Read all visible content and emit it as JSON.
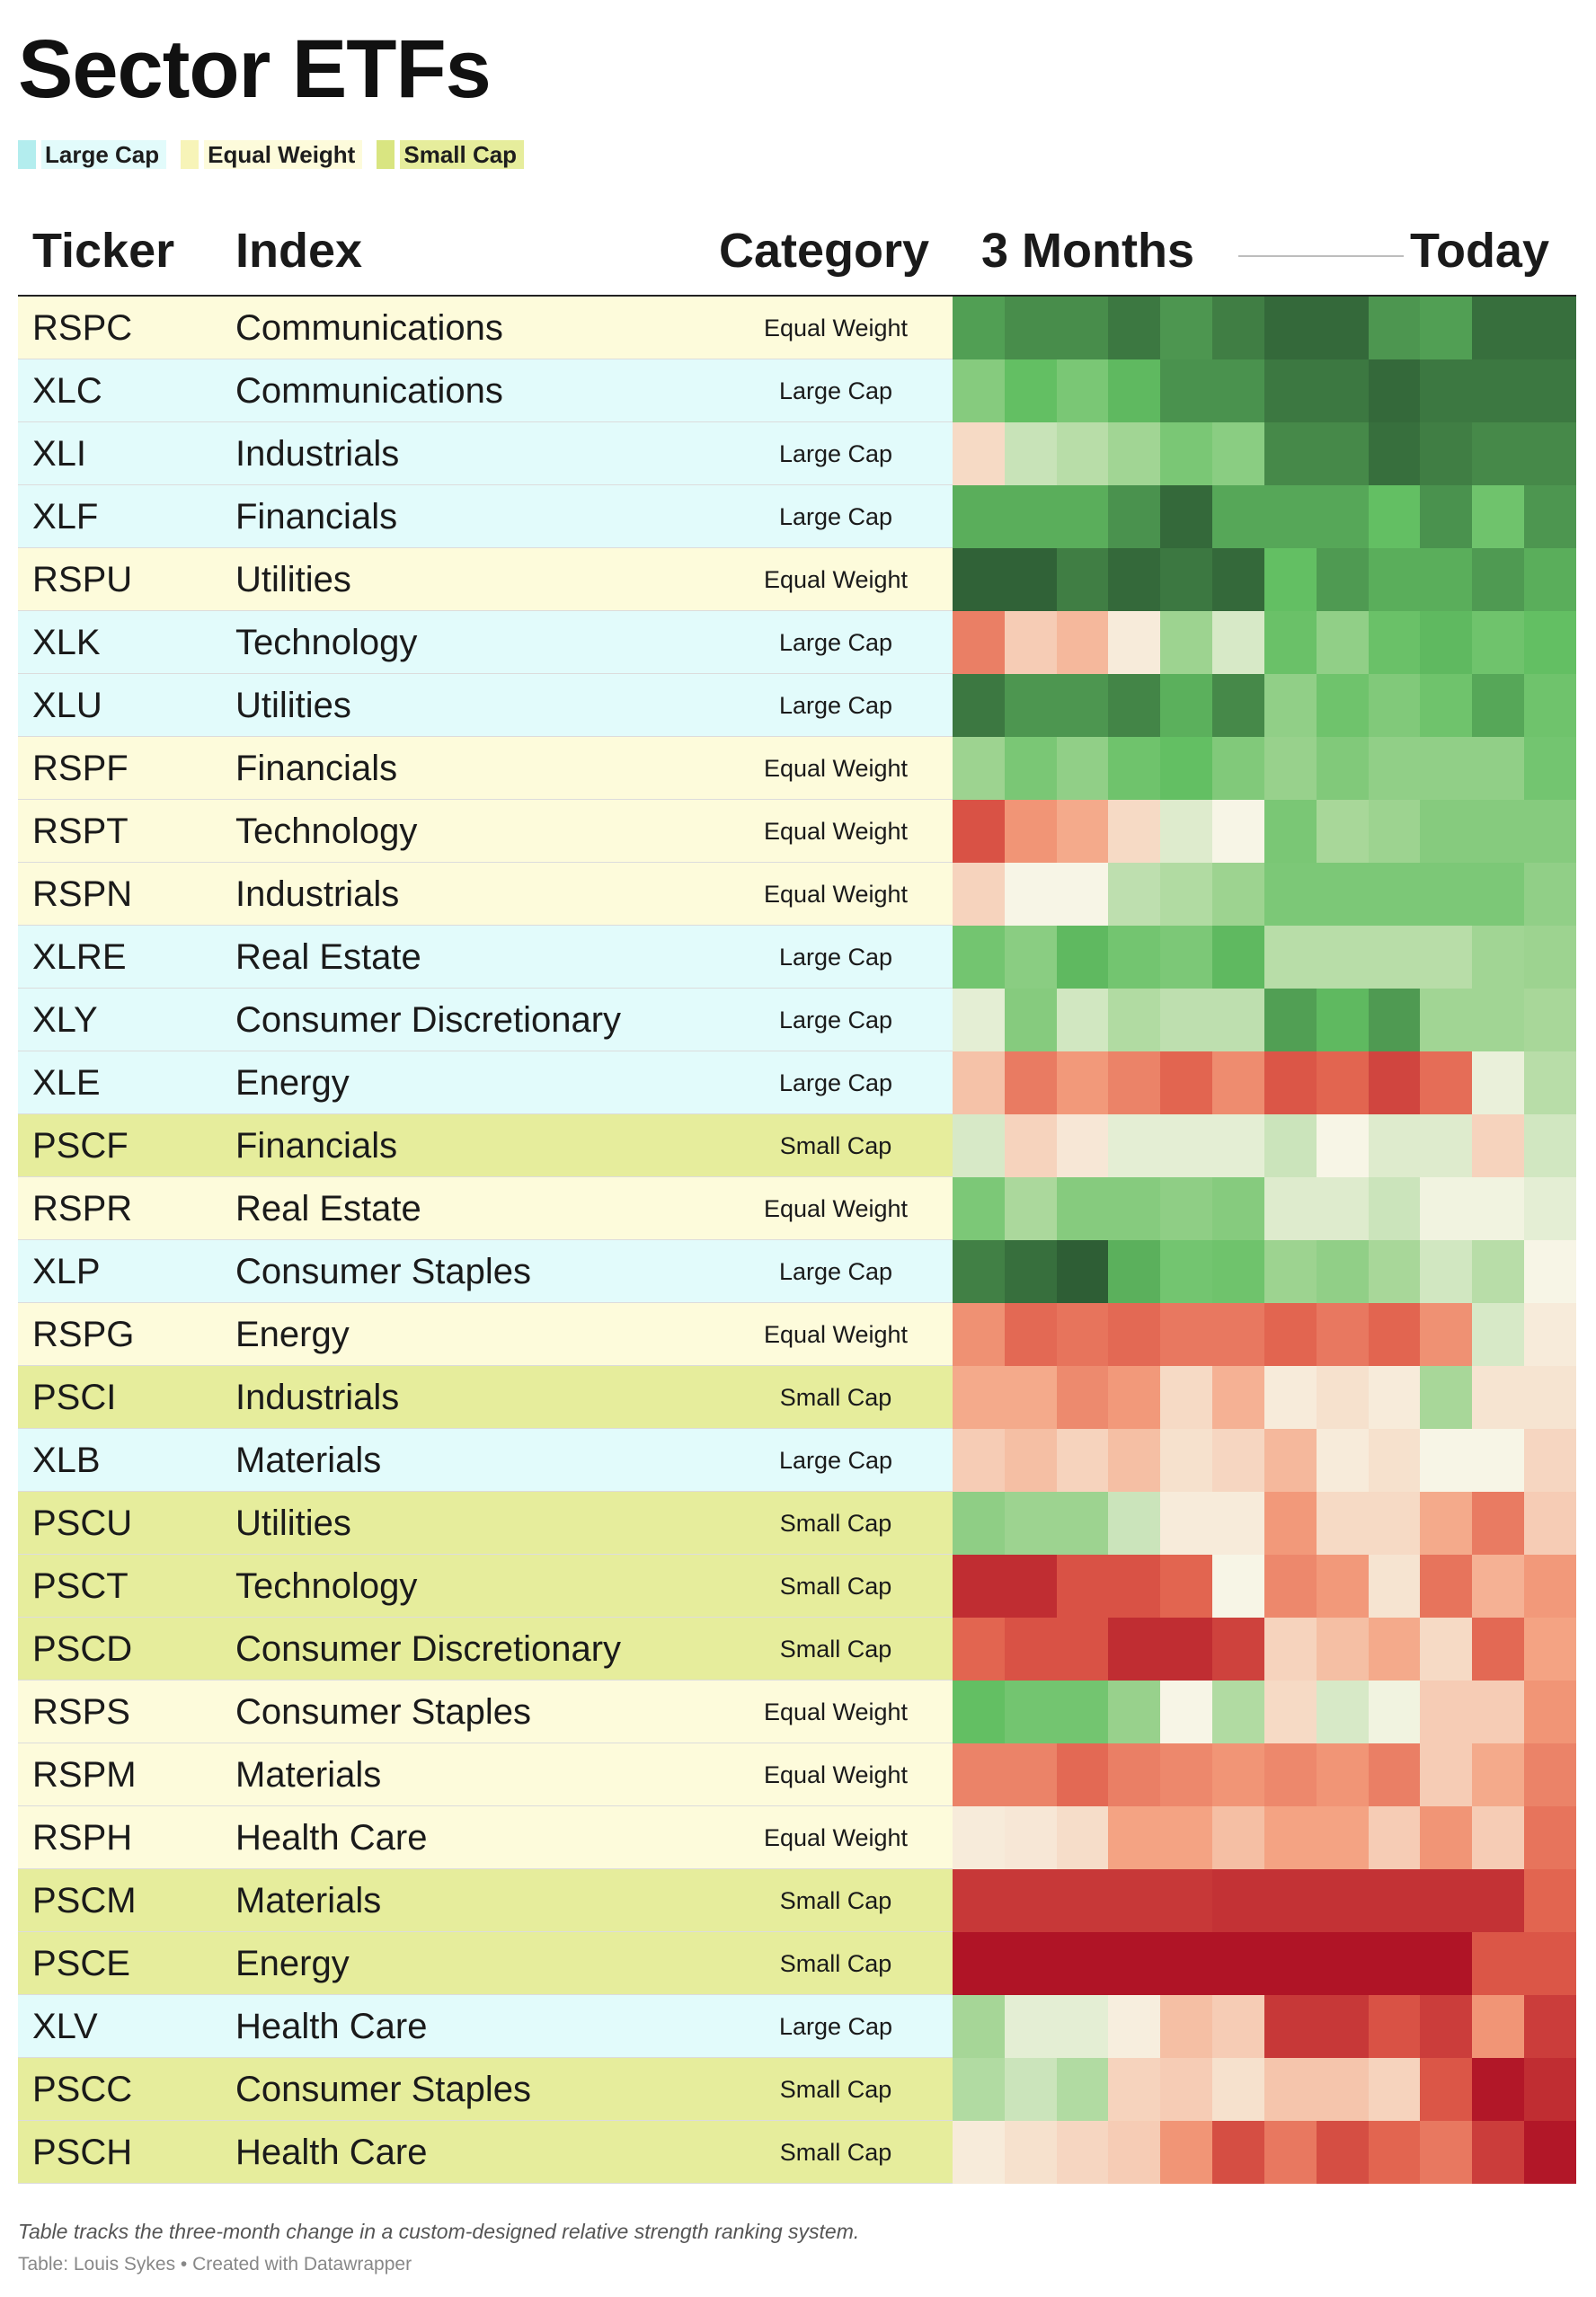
{
  "title": "Sector ETFs",
  "legend": [
    {
      "label": "Large Cap",
      "color": "#b3edee",
      "text_bg": "#e2fbfb"
    },
    {
      "label": "Equal Weight",
      "color": "#f7f4b8",
      "text_bg": "#fdfbdb"
    },
    {
      "label": "Small Cap",
      "color": "#d9e581",
      "text_bg": "#e6ed9c"
    }
  ],
  "columns": {
    "ticker": "Ticker",
    "index": "Index",
    "category": "Category",
    "period_start": "3 Months",
    "period_end": "Today"
  },
  "category_colors": {
    "Large Cap": "#e2fbfb",
    "Equal Weight": "#fdfbdb",
    "Small Cap": "#e6ed9c"
  },
  "color_scale": {
    "stops": [
      {
        "v": -100,
        "color": "#b01426"
      },
      {
        "v": -55,
        "color": "#e05e4b"
      },
      {
        "v": -25,
        "color": "#f4a07f"
      },
      {
        "v": 0,
        "color": "#f7f5e6"
      },
      {
        "v": 25,
        "color": "#a8d799"
      },
      {
        "v": 55,
        "color": "#63bf63"
      },
      {
        "v": 100,
        "color": "#2e5e35"
      }
    ]
  },
  "chart_data": {
    "type": "heatmap",
    "columns_per_row": 12,
    "rows": [
      {
        "ticker": "RSPC",
        "index": "Communications",
        "category": "Equal Weight",
        "values": [
          70,
          78,
          78,
          88,
          74,
          85,
          95,
          95,
          74,
          70,
          92,
          92
        ]
      },
      {
        "ticker": "XLC",
        "index": "Communications",
        "category": "Large Cap",
        "values": [
          40,
          55,
          45,
          58,
          76,
          76,
          88,
          88,
          95,
          88,
          88,
          88
        ]
      },
      {
        "ticker": "XLI",
        "index": "Industrials",
        "category": "Large Cap",
        "values": [
          -8,
          15,
          20,
          28,
          45,
          38,
          80,
          80,
          92,
          85,
          80,
          80
        ]
      },
      {
        "ticker": "XLF",
        "index": "Financials",
        "category": "Large Cap",
        "values": [
          63,
          63,
          63,
          76,
          95,
          66,
          66,
          66,
          55,
          76,
          50,
          74
        ]
      },
      {
        "ticker": "RSPU",
        "index": "Utilities",
        "category": "Equal Weight",
        "values": [
          98,
          98,
          85,
          95,
          88,
          95,
          55,
          72,
          63,
          63,
          72,
          63
        ]
      },
      {
        "ticker": "XLK",
        "index": "Technology",
        "category": "Large Cap",
        "values": [
          -40,
          -12,
          -18,
          -3,
          30,
          10,
          52,
          35,
          52,
          58,
          50,
          55
        ]
      },
      {
        "ticker": "XLU",
        "index": "Utilities",
        "category": "Large Cap",
        "values": [
          88,
          74,
          74,
          82,
          62,
          80,
          35,
          50,
          42,
          50,
          66,
          50
        ]
      },
      {
        "ticker": "RSPF",
        "index": "Financials",
        "category": "Equal Weight",
        "values": [
          30,
          45,
          35,
          50,
          55,
          42,
          32,
          42,
          35,
          35,
          35,
          48
        ]
      },
      {
        "ticker": "RSPT",
        "index": "Technology",
        "category": "Equal Weight",
        "values": [
          -62,
          -30,
          -22,
          -8,
          8,
          0,
          45,
          25,
          30,
          40,
          40,
          40
        ]
      },
      {
        "ticker": "RSPN",
        "index": "Industrials",
        "category": "Equal Weight",
        "values": [
          -10,
          0,
          0,
          18,
          22,
          30,
          44,
          44,
          44,
          44,
          44,
          35
        ]
      },
      {
        "ticker": "XLRE",
        "index": "Real Estate",
        "category": "Large Cap",
        "values": [
          48,
          38,
          58,
          48,
          44,
          58,
          20,
          20,
          20,
          20,
          28,
          30
        ]
      },
      {
        "ticker": "XLY",
        "index": "Consumer Discretionary",
        "category": "Large Cap",
        "values": [
          6,
          40,
          12,
          22,
          18,
          18,
          70,
          58,
          72,
          28,
          28,
          25
        ]
      },
      {
        "ticker": "XLE",
        "index": "Energy",
        "category": "Large Cap",
        "values": [
          -15,
          -42,
          -28,
          -38,
          -52,
          -34,
          -60,
          -52,
          -70,
          -48,
          4,
          20
        ]
      },
      {
        "ticker": "PSCF",
        "index": "Financials",
        "category": "Small Cap",
        "values": [
          10,
          -10,
          -4,
          6,
          6,
          6,
          14,
          0,
          8,
          8,
          -10,
          12
        ]
      },
      {
        "ticker": "RSPR",
        "index": "Real Estate",
        "category": "Equal Weight",
        "values": [
          44,
          24,
          40,
          40,
          36,
          40,
          8,
          8,
          14,
          2,
          2,
          6
        ]
      },
      {
        "ticker": "XLP",
        "index": "Consumer Staples",
        "category": "Large Cap",
        "values": [
          84,
          92,
          100,
          62,
          48,
          50,
          30,
          35,
          25,
          12,
          20,
          0
        ]
      },
      {
        "ticker": "RSPG",
        "index": "Energy",
        "category": "Equal Weight",
        "values": [
          -32,
          -50,
          -45,
          -50,
          -43,
          -43,
          -52,
          -43,
          -52,
          -32,
          10,
          -3
        ]
      },
      {
        "ticker": "PSCI",
        "index": "Industrials",
        "category": "Small Cap",
        "values": [
          -22,
          -22,
          -35,
          -28,
          -8,
          -20,
          -3,
          -6,
          -3,
          25,
          -5,
          -5
        ]
      },
      {
        "ticker": "XLB",
        "index": "Materials",
        "category": "Large Cap",
        "values": [
          -12,
          -16,
          -10,
          -16,
          -6,
          -9,
          -18,
          -3,
          -6,
          0,
          0,
          -9
        ]
      },
      {
        "ticker": "PSCU",
        "index": "Utilities",
        "category": "Small Cap",
        "values": [
          36,
          30,
          30,
          14,
          -3,
          -3,
          -28,
          -8,
          -8,
          -22,
          -42,
          -12
        ]
      },
      {
        "ticker": "PSCT",
        "index": "Technology",
        "category": "Small Cap",
        "values": [
          -85,
          -85,
          -62,
          -62,
          -52,
          0,
          -36,
          -28,
          -5,
          -45,
          -20,
          -28
        ]
      },
      {
        "ticker": "PSCD",
        "index": "Consumer Discretionary",
        "category": "Small Cap",
        "values": [
          -52,
          -62,
          -62,
          -85,
          -85,
          -72,
          -10,
          -16,
          -22,
          -8,
          -50,
          -24
        ]
      },
      {
        "ticker": "RSPS",
        "index": "Consumer Staples",
        "category": "Equal Weight",
        "values": [
          55,
          48,
          48,
          32,
          0,
          22,
          -8,
          10,
          2,
          -12,
          -12,
          -30
        ]
      },
      {
        "ticker": "RSPM",
        "index": "Materials",
        "category": "Equal Weight",
        "values": [
          -38,
          -38,
          -50,
          -40,
          -36,
          -30,
          -36,
          -30,
          -40,
          -12,
          -22,
          -38
        ]
      },
      {
        "ticker": "RSPH",
        "index": "Health Care",
        "category": "Equal Weight",
        "values": [
          -3,
          -4,
          -7,
          -24,
          -24,
          -16,
          -24,
          -24,
          -12,
          -30,
          -12,
          -45
        ]
      },
      {
        "ticker": "PSCM",
        "index": "Materials",
        "category": "Small Cap",
        "values": [
          -78,
          -78,
          -78,
          -78,
          -78,
          -82,
          -82,
          -82,
          -82,
          -82,
          -82,
          -52
        ]
      },
      {
        "ticker": "PSCE",
        "index": "Energy",
        "category": "Small Cap",
        "values": [
          -100,
          -100,
          -100,
          -100,
          -100,
          -100,
          -100,
          -100,
          -100,
          -100,
          -60,
          -60
        ]
      },
      {
        "ticker": "XLV",
        "index": "Health Care",
        "category": "Large Cap",
        "values": [
          26,
          6,
          6,
          -2,
          -16,
          -12,
          -78,
          -78,
          -62,
          -75,
          -30,
          -75
        ]
      },
      {
        "ticker": "PSCC",
        "index": "Consumer Staples",
        "category": "Small Cap",
        "values": [
          22,
          14,
          22,
          -10,
          -12,
          -6,
          -14,
          -14,
          -10,
          -60,
          -98,
          -85
        ]
      },
      {
        "ticker": "PSCH",
        "index": "Health Care",
        "category": "Small Cap",
        "values": [
          -3,
          -6,
          -9,
          -12,
          -30,
          -65,
          -43,
          -65,
          -52,
          -43,
          -75,
          -98
        ]
      }
    ]
  },
  "notes": "Table tracks the three-month change in a custom-designed relative strength ranking system.",
  "source": "Table: Louis Sykes • Created with Datawrapper"
}
